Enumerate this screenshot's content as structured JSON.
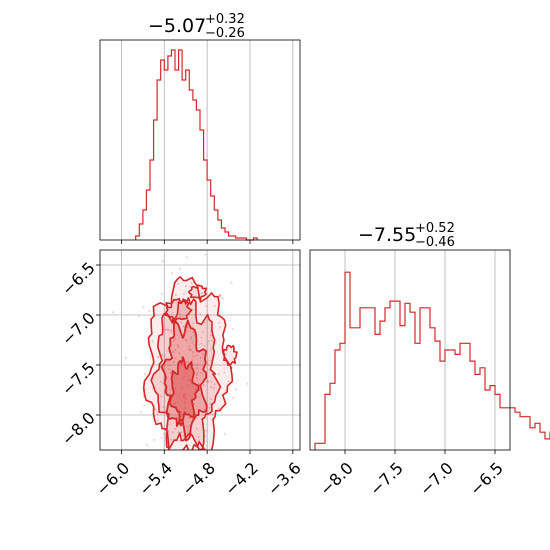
{
  "chart_data": {
    "type": "corner",
    "color": "#d62728",
    "grid": true,
    "titles": [
      {
        "main": "−5.07",
        "plus": "+0.32",
        "minus": "−0.26"
      },
      {
        "main": "−7.55",
        "plus": "+0.52",
        "minus": "−0.46"
      }
    ],
    "param1": {
      "range": [
        -6.3,
        -3.5
      ],
      "ticks": [
        -6.0,
        -5.4,
        -4.8,
        -4.2,
        -3.6
      ],
      "tick_labels": [
        "−6.0",
        "−5.4",
        "−4.8",
        "−4.2",
        "−3.6"
      ]
    },
    "param2": {
      "range": [
        -8.35,
        -6.35
      ],
      "ticks": [
        -8.0,
        -7.5,
        -7.0,
        -6.5
      ],
      "tick_labels": [
        "−8.0",
        "−7.5",
        "−7.0",
        "−6.5"
      ]
    },
    "hist1": {
      "x_start": -5.8,
      "bin_width": 0.05,
      "counts": [
        2,
        8,
        15,
        25,
        40,
        60,
        80,
        90,
        85,
        92,
        95,
        85,
        95,
        80,
        85,
        75,
        70,
        65,
        55,
        40,
        30,
        22,
        15,
        10,
        6,
        4,
        2,
        2,
        1,
        1,
        1,
        0,
        0,
        1
      ],
      "ymax": 100
    },
    "hist2": {
      "x_start": -8.3,
      "bin_width": 0.05,
      "counts": [
        3,
        3,
        25,
        30,
        45,
        48,
        80,
        55,
        55,
        64,
        64,
        64,
        52,
        58,
        64,
        67,
        67,
        56,
        66,
        62,
        48,
        64,
        64,
        55,
        49,
        40,
        45,
        45,
        43,
        48,
        48,
        40,
        34,
        37,
        27,
        29,
        25,
        19,
        19,
        19,
        17,
        15,
        15,
        10,
        12,
        8,
        5,
        8,
        5,
        3
      ],
      "ymax": 90
    }
  }
}
